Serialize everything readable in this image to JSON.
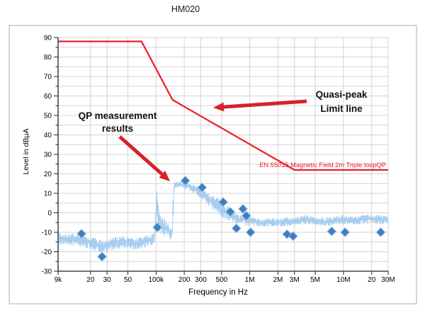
{
  "title": "HM020",
  "chart_data": {
    "type": "line",
    "title": "HM020",
    "xlabel": "Frequency in Hz",
    "ylabel": "Level in dBµA",
    "x_scale": "log",
    "x_range": [
      9000,
      30000000
    ],
    "y_range": [
      -30,
      90
    ],
    "grid": true,
    "y_gridline_step": 5,
    "y_ticks": [
      90,
      80,
      70,
      60,
      50,
      40,
      30,
      20,
      10,
      0,
      -10,
      -20,
      -30
    ],
    "x_ticks": [
      {
        "label": "9k",
        "f": 9000
      },
      {
        "label": "20",
        "f": 20000
      },
      {
        "label": "30",
        "f": 30000
      },
      {
        "label": "50",
        "f": 50000
      },
      {
        "label": "100k",
        "f": 100000
      },
      {
        "label": "200",
        "f": 200000
      },
      {
        "label": "300",
        "f": 300000
      },
      {
        "label": "500",
        "f": 500000
      },
      {
        "label": "1M",
        "f": 1000000
      },
      {
        "label": "2M",
        "f": 2000000
      },
      {
        "label": "3M",
        "f": 3000000
      },
      {
        "label": "5M",
        "f": 5000000
      },
      {
        "label": "10M",
        "f": 10000000
      },
      {
        "label": "20",
        "f": 20000000
      },
      {
        "label": "30M",
        "f": 30000000
      }
    ],
    "series": [
      {
        "name": "EN 55015 Magnetic Field  2m Triple loopQP",
        "role": "quasi-peak-limit-line",
        "type": "line",
        "color": "#ee1c25",
        "points": [
          [
            9000,
            88
          ],
          [
            70000,
            88
          ],
          [
            150000,
            58
          ],
          [
            3000000,
            22
          ],
          [
            30000000,
            22
          ]
        ]
      },
      {
        "name": "QP measurement results",
        "role": "qp-markers",
        "type": "scatter",
        "marker": "diamond",
        "color": "#3e7fc1",
        "points": [
          [
            16000,
            -10.7
          ],
          [
            26500,
            -22.5
          ],
          [
            103000,
            -7.5
          ],
          [
            205000,
            16.5
          ],
          [
            310000,
            13
          ],
          [
            520000,
            5.5
          ],
          [
            620000,
            0.5
          ],
          [
            720000,
            -8
          ],
          [
            845000,
            2
          ],
          [
            920000,
            -1.5
          ],
          [
            1020000,
            -10
          ],
          [
            2500000,
            -11
          ],
          [
            2900000,
            -12
          ],
          [
            7500000,
            -9.5
          ],
          [
            10400000,
            -10
          ],
          [
            25000000,
            -10
          ]
        ]
      },
      {
        "name": "measured spectrum trace",
        "role": "noisy-trace",
        "type": "noisy-line",
        "color": "#a8cdef",
        "envelope": [
          [
            9000,
            -16,
            -10
          ],
          [
            11000,
            -17,
            -11
          ],
          [
            14000,
            -17,
            -10
          ],
          [
            18000,
            -18,
            -12
          ],
          [
            23000,
            -20,
            -13
          ],
          [
            28000,
            -21,
            -14
          ],
          [
            35000,
            -19,
            -12
          ],
          [
            45000,
            -18,
            -12
          ],
          [
            60000,
            -19,
            -13
          ],
          [
            75000,
            -18,
            -12
          ],
          [
            90000,
            -17,
            -11
          ],
          [
            97000,
            -15,
            -9
          ],
          [
            100000,
            -10,
            12
          ],
          [
            103000,
            -8,
            13
          ],
          [
            107000,
            -10,
            2
          ],
          [
            112000,
            -11,
            -1
          ],
          [
            120000,
            -12,
            -2
          ],
          [
            132000,
            -13,
            -4
          ],
          [
            143000,
            -14,
            -7
          ],
          [
            149000,
            -13,
            -9
          ],
          [
            151000,
            -10,
            14
          ],
          [
            156000,
            12,
            16
          ],
          [
            165000,
            13,
            16
          ],
          [
            185000,
            13,
            16
          ],
          [
            210000,
            12,
            16
          ],
          [
            240000,
            11,
            15
          ],
          [
            270000,
            9,
            14
          ],
          [
            300000,
            7,
            13
          ],
          [
            340000,
            5,
            11
          ],
          [
            390000,
            2,
            9
          ],
          [
            450000,
            0,
            8
          ],
          [
            520000,
            -3,
            7
          ],
          [
            600000,
            -4,
            3
          ],
          [
            680000,
            -5,
            1
          ],
          [
            760000,
            -6,
            -1
          ],
          [
            850000,
            -6,
            0
          ],
          [
            950000,
            -7,
            -1
          ],
          [
            1100000,
            -7,
            -2
          ],
          [
            1300000,
            -7,
            -3
          ],
          [
            1600000,
            -7,
            -2
          ],
          [
            2000000,
            -7,
            -3
          ],
          [
            2500000,
            -7,
            -2
          ],
          [
            3200000,
            -6,
            -2
          ],
          [
            4000000,
            -6,
            -1
          ],
          [
            5000000,
            -6,
            -2
          ],
          [
            6500000,
            -7,
            -2
          ],
          [
            8000000,
            -6,
            -2
          ],
          [
            10000000,
            -6,
            -1
          ],
          [
            13000000,
            -6,
            -2
          ],
          [
            16000000,
            -6,
            -1
          ],
          [
            20000000,
            -5,
            -1
          ],
          [
            25000000,
            -6,
            -1
          ],
          [
            30000000,
            -6,
            -2
          ]
        ]
      }
    ],
    "annotations": [
      {
        "id": "qp-results-callout",
        "lines": [
          "QP measurement",
          "results"
        ],
        "color": "#111111",
        "bold": true,
        "font_size": 13.5,
        "x": 166,
        "y": 168,
        "line_height": 18,
        "anchor": "middle",
        "arrow": {
          "from": [
            169,
            193
          ],
          "to": [
            240,
            256
          ],
          "color": "#d62229"
        }
      },
      {
        "id": "quasi-peak-callout",
        "lines": [
          "Quasi-peak",
          "Limit line"
        ],
        "color": "#111111",
        "bold": true,
        "font_size": 13.5,
        "x": 482,
        "y": 138,
        "line_height": 20,
        "anchor": "middle",
        "arrow": {
          "from": [
            433,
            143
          ],
          "to": [
            301,
            152
          ],
          "color": "#d62229"
        }
      },
      {
        "id": "limit-line-name-label",
        "lines": [
          "EN 55015 Magnetic Field  2m Triple loopQP"
        ],
        "color": "#ee1c25",
        "bold": false,
        "font_size": 9.3,
        "x": 545,
        "y": 236,
        "line_height": 11,
        "anchor": "end"
      }
    ]
  }
}
